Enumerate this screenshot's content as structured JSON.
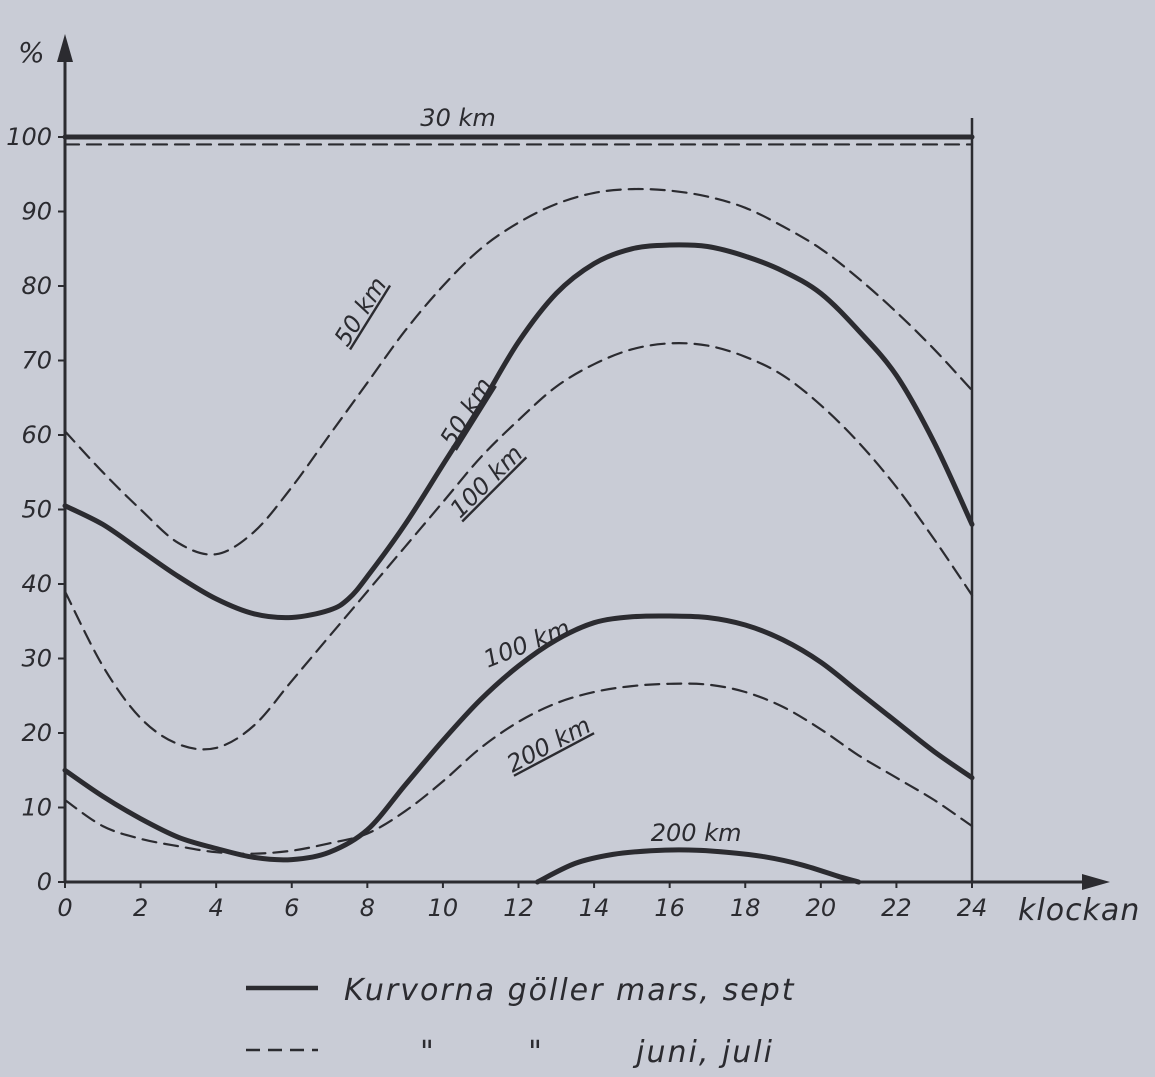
{
  "chart_data": {
    "type": "line",
    "ylabel": "%",
    "xlabel": "klockan",
    "xlim": [
      0,
      24
    ],
    "ylim": [
      0,
      100
    ],
    "x_ticks": [
      0,
      2,
      4,
      6,
      8,
      10,
      12,
      14,
      16,
      18,
      20,
      22,
      24
    ],
    "y_ticks": [
      0,
      10,
      20,
      30,
      40,
      50,
      60,
      70,
      80,
      90,
      100
    ],
    "grid": false,
    "colors": {
      "ink": "#2b2b30",
      "background": "#c9ccd6"
    },
    "series": [
      {
        "name": "30 km",
        "period": "mars, sept",
        "style": "solid",
        "points": [
          [
            0,
            100
          ],
          [
            24,
            100
          ]
        ]
      },
      {
        "name": "30 km",
        "period": "juni, juli",
        "style": "dashed",
        "points": [
          [
            0,
            99
          ],
          [
            24,
            99
          ]
        ]
      },
      {
        "name": "50 km",
        "period": "mars, sept",
        "style": "solid",
        "points": [
          [
            0,
            50.5
          ],
          [
            1,
            48
          ],
          [
            2,
            44.5
          ],
          [
            3,
            41
          ],
          [
            4,
            38
          ],
          [
            5,
            36
          ],
          [
            6,
            35.5
          ],
          [
            7,
            36.5
          ],
          [
            7.5,
            38
          ],
          [
            8,
            41
          ],
          [
            9,
            48
          ],
          [
            10,
            56
          ],
          [
            11,
            64
          ],
          [
            12,
            72.5
          ],
          [
            13,
            79
          ],
          [
            14,
            83
          ],
          [
            15,
            85
          ],
          [
            16,
            85.5
          ],
          [
            17,
            85.3
          ],
          [
            18,
            84
          ],
          [
            19,
            82
          ],
          [
            20,
            79
          ],
          [
            21,
            74
          ],
          [
            22,
            68
          ],
          [
            23,
            59
          ],
          [
            24,
            48
          ]
        ]
      },
      {
        "name": "50 km",
        "period": "juni, juli",
        "style": "dashed",
        "points": [
          [
            0,
            60.5
          ],
          [
            1,
            55
          ],
          [
            2,
            50
          ],
          [
            3,
            45.5
          ],
          [
            4,
            44
          ],
          [
            5,
            47
          ],
          [
            6,
            53
          ],
          [
            7,
            60
          ],
          [
            8,
            67
          ],
          [
            9,
            74
          ],
          [
            10,
            80
          ],
          [
            11,
            85
          ],
          [
            12,
            88.5
          ],
          [
            13,
            91
          ],
          [
            14,
            92.5
          ],
          [
            15,
            93
          ],
          [
            16,
            92.8
          ],
          [
            17,
            92
          ],
          [
            18,
            90.5
          ],
          [
            19,
            88
          ],
          [
            20,
            85
          ],
          [
            21,
            81
          ],
          [
            22,
            76.5
          ],
          [
            23,
            71.5
          ],
          [
            24,
            66
          ]
        ]
      },
      {
        "name": "100 km",
        "period": "mars, sept",
        "style": "solid",
        "points": [
          [
            0,
            15
          ],
          [
            1,
            11.5
          ],
          [
            2,
            8.5
          ],
          [
            3,
            6
          ],
          [
            4,
            4.5
          ],
          [
            5,
            3.3
          ],
          [
            6,
            3
          ],
          [
            7,
            4
          ],
          [
            8,
            7
          ],
          [
            9,
            13
          ],
          [
            10,
            19
          ],
          [
            11,
            24.5
          ],
          [
            12,
            29
          ],
          [
            13,
            32.5
          ],
          [
            14,
            34.8
          ],
          [
            15,
            35.6
          ],
          [
            16,
            35.7
          ],
          [
            17,
            35.5
          ],
          [
            18,
            34.5
          ],
          [
            19,
            32.5
          ],
          [
            20,
            29.5
          ],
          [
            21,
            25.5
          ],
          [
            22,
            21.5
          ],
          [
            23,
            17.5
          ],
          [
            24,
            14
          ]
        ]
      },
      {
        "name": "100 km",
        "period": "juni, juli",
        "style": "dashed",
        "points": [
          [
            0,
            39
          ],
          [
            1,
            29
          ],
          [
            2,
            22
          ],
          [
            3,
            18.5
          ],
          [
            4,
            18
          ],
          [
            5,
            21
          ],
          [
            6,
            27
          ],
          [
            7,
            33
          ],
          [
            8,
            39
          ],
          [
            9,
            45
          ],
          [
            10,
            51
          ],
          [
            11,
            57
          ],
          [
            12,
            62
          ],
          [
            13,
            66.5
          ],
          [
            14,
            69.5
          ],
          [
            15,
            71.5
          ],
          [
            16,
            72.3
          ],
          [
            17,
            72
          ],
          [
            18,
            70.5
          ],
          [
            19,
            68
          ],
          [
            20,
            64
          ],
          [
            21,
            59
          ],
          [
            22,
            53
          ],
          [
            23,
            46
          ],
          [
            24,
            38.5
          ]
        ]
      },
      {
        "name": "200 km",
        "period": "mars, sept",
        "style": "solid",
        "points": [
          [
            12.5,
            0
          ],
          [
            13.5,
            2.5
          ],
          [
            14.5,
            3.7
          ],
          [
            15.5,
            4.2
          ],
          [
            16.5,
            4.3
          ],
          [
            17.5,
            4
          ],
          [
            18.5,
            3.4
          ],
          [
            19.5,
            2.3
          ],
          [
            20.5,
            0.7
          ],
          [
            21,
            0
          ]
        ]
      },
      {
        "name": "200 km",
        "period": "juni, juli",
        "style": "dashed",
        "points": [
          [
            0,
            11
          ],
          [
            1,
            7.5
          ],
          [
            2,
            5.8
          ],
          [
            3,
            4.8
          ],
          [
            4,
            4
          ],
          [
            5,
            3.8
          ],
          [
            6,
            4.2
          ],
          [
            7,
            5.2
          ],
          [
            8,
            6.5
          ],
          [
            9,
            9.5
          ],
          [
            10,
            13.5
          ],
          [
            11,
            18
          ],
          [
            12,
            21.5
          ],
          [
            13,
            24
          ],
          [
            14,
            25.5
          ],
          [
            15,
            26.3
          ],
          [
            16,
            26.6
          ],
          [
            17,
            26.5
          ],
          [
            18,
            25.5
          ],
          [
            19,
            23.5
          ],
          [
            20,
            20.5
          ],
          [
            21,
            17
          ],
          [
            22,
            14
          ],
          [
            23,
            11
          ],
          [
            24,
            7.5
          ]
        ]
      }
    ],
    "curve_labels": [
      {
        "text": "30 km",
        "x": 10.4,
        "y": 101.5,
        "angle": 0,
        "underline": false
      },
      {
        "text": "50 km",
        "x": 8.0,
        "y": 76,
        "angle": -58,
        "underline": true
      },
      {
        "text": "50 km",
        "x": 10.8,
        "y": 62.5,
        "angle": -58,
        "underline": true
      },
      {
        "text": "100 km",
        "x": 11.3,
        "y": 53,
        "angle": -45,
        "underline": true
      },
      {
        "text": "100 km",
        "x": 12.3,
        "y": 31,
        "angle": -22,
        "underline": false
      },
      {
        "text": "200 km",
        "x": 12.9,
        "y": 17.5,
        "angle": -28,
        "underline": true
      },
      {
        "text": "200 km",
        "x": 16.7,
        "y": 5.5,
        "angle": 0,
        "underline": false
      }
    ],
    "legend": {
      "placement": "bottom",
      "entries": [
        {
          "style": "solid",
          "label": "Kurvorna göller mars, sept"
        },
        {
          "style": "dashed",
          "label": "\"        \"        juni, juli"
        }
      ]
    }
  }
}
